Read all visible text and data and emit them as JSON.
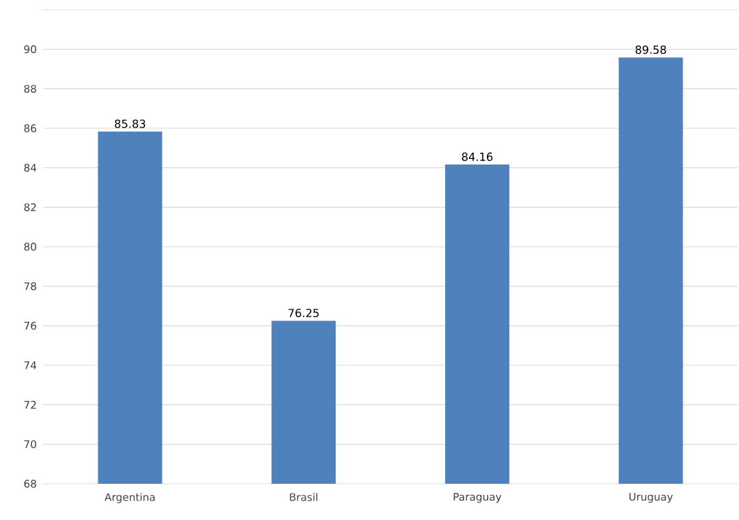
{
  "chart_data": {
    "type": "bar",
    "categories": [
      "Argentina",
      "Brasil",
      "Paraguay",
      "Uruguay"
    ],
    "values": [
      85.83,
      76.25,
      84.16,
      89.58
    ],
    "color": "#4f81bd",
    "ylim": [
      68,
      92
    ],
    "yticks": [
      68,
      70,
      72,
      74,
      76,
      78,
      80,
      82,
      84,
      86,
      88,
      90,
      {
        "value": 92,
        "label": null
      }
    ],
    "grid": "y",
    "data_labels": true
  }
}
